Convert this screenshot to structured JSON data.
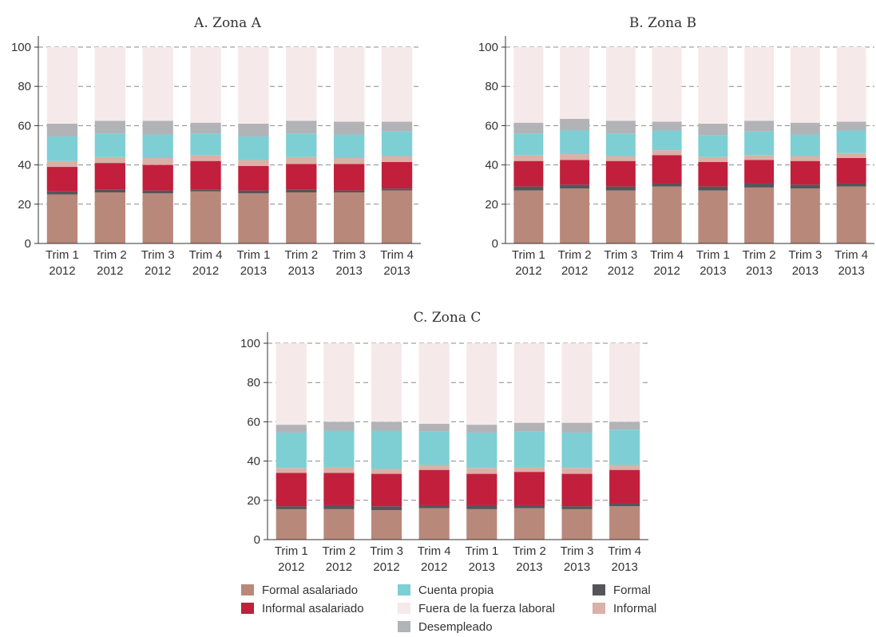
{
  "colors": {
    "formal_asalariado": "#b8887a",
    "formal": "#555559",
    "informal_asalariado": "#c21f3d",
    "informal": "#d9b1a7",
    "cuenta_propia": "#7dcfd4",
    "desempleado": "#b1b3b7",
    "fuera": "#f6e9e9",
    "grid": "#8a8a8a",
    "axis": "#333333"
  },
  "chart_data": [
    {
      "type": "bar",
      "stacked": true,
      "title": "A. Zona A",
      "categories": [
        "Trim 1\n2012",
        "Trim 2\n2012",
        "Trim 3\n2012",
        "Trim 4\n2012",
        "Trim 1\n2013",
        "Trim 2\n2013",
        "Trim 3\n2013",
        "Trim 4\n2013"
      ],
      "ylim": [
        0,
        100
      ],
      "yticks": [
        0,
        20,
        40,
        60,
        80,
        100
      ],
      "grid": true,
      "series": [
        {
          "name": "Formal asalariado",
          "key": "formal_asalariado",
          "values": [
            25,
            26,
            25.5,
            26.5,
            25.5,
            26,
            26,
            27
          ]
        },
        {
          "name": "Formal",
          "key": "formal",
          "values": [
            1.5,
            1.5,
            1.5,
            1,
            1.5,
            1.5,
            1,
            1
          ]
        },
        {
          "name": "Informal asalariado",
          "key": "informal_asalariado",
          "values": [
            12.5,
            13.5,
            13,
            14.5,
            12.5,
            13,
            13.5,
            13.5
          ]
        },
        {
          "name": "Informal",
          "key": "informal",
          "values": [
            3,
            3,
            3.5,
            3,
            3,
            3.5,
            3,
            3
          ]
        },
        {
          "name": "Cuenta propia",
          "key": "cuenta_propia",
          "values": [
            12.5,
            12,
            12,
            11,
            12,
            12,
            12,
            12.5
          ]
        },
        {
          "name": "Desempleado",
          "key": "desempleado",
          "values": [
            6.5,
            6.5,
            7,
            5.5,
            6.5,
            6.5,
            6.5,
            5
          ]
        },
        {
          "name": "Fuera de la fuerza laboral",
          "key": "fuera",
          "values": [
            39,
            37.5,
            37.5,
            38.5,
            39,
            37.5,
            38,
            38
          ]
        }
      ]
    },
    {
      "type": "bar",
      "stacked": true,
      "title": "B. Zona B",
      "categories": [
        "Trim 1\n2012",
        "Trim 2\n2012",
        "Trim 3\n2012",
        "Trim 4\n2012",
        "Trim 1\n2013",
        "Trim 2\n2013",
        "Trim 3\n2013",
        "Trim 4\n2013"
      ],
      "ylim": [
        0,
        100
      ],
      "yticks": [
        0,
        20,
        40,
        60,
        80,
        100
      ],
      "grid": true,
      "series": [
        {
          "name": "Formal asalariado",
          "key": "formal_asalariado",
          "values": [
            27,
            28,
            27,
            29,
            27,
            28.5,
            28,
            29
          ]
        },
        {
          "name": "Formal",
          "key": "formal",
          "values": [
            2,
            2,
            2,
            1.5,
            2,
            2,
            2,
            1.5
          ]
        },
        {
          "name": "Informal asalariado",
          "key": "informal_asalariado",
          "values": [
            13,
            12.5,
            13,
            14.5,
            12.5,
            12,
            12,
            13
          ]
        },
        {
          "name": "Informal",
          "key": "informal",
          "values": [
            3,
            3,
            2.5,
            2.5,
            2.5,
            2.5,
            2.5,
            2.5
          ]
        },
        {
          "name": "Cuenta propia",
          "key": "cuenta_propia",
          "values": [
            11,
            12,
            11.5,
            10,
            11,
            12,
            11,
            11.5
          ]
        },
        {
          "name": "Desempleado",
          "key": "desempleado",
          "values": [
            5.5,
            6,
            6.5,
            4.5,
            6,
            5.5,
            6,
            4.5
          ]
        },
        {
          "name": "Fuera de la fuerza laboral",
          "key": "fuera",
          "values": [
            38.5,
            36.5,
            37.5,
            38,
            39,
            37.5,
            38.5,
            38
          ]
        }
      ]
    },
    {
      "type": "bar",
      "stacked": true,
      "title": "C. Zona C",
      "categories": [
        "Trim 1\n2012",
        "Trim 2\n2012",
        "Trim 3\n2012",
        "Trim 4\n2012",
        "Trim 1\n2013",
        "Trim 2\n2013",
        "Trim 3\n2013",
        "Trim 4\n2013"
      ],
      "ylim": [
        0,
        100
      ],
      "yticks": [
        0,
        20,
        40,
        60,
        80,
        100
      ],
      "grid": true,
      "series": [
        {
          "name": "Formal asalariado",
          "key": "formal_asalariado",
          "values": [
            15.5,
            15.5,
            15,
            16,
            15.5,
            16,
            15.5,
            17
          ]
        },
        {
          "name": "Formal",
          "key": "formal",
          "values": [
            1.5,
            2,
            2,
            1.5,
            2,
            1.5,
            1.5,
            1.5
          ]
        },
        {
          "name": "Informal asalariado",
          "key": "informal_asalariado",
          "values": [
            17,
            16.5,
            16.5,
            18,
            16,
            17,
            16.5,
            17
          ]
        },
        {
          "name": "Informal",
          "key": "informal",
          "values": [
            2.5,
            3,
            2.5,
            2.5,
            3,
            2.5,
            3,
            2.5
          ]
        },
        {
          "name": "Cuenta propia",
          "key": "cuenta_propia",
          "values": [
            18,
            18.5,
            19.5,
            17,
            18,
            18,
            18,
            18
          ]
        },
        {
          "name": "Desempleado",
          "key": "desempleado",
          "values": [
            4,
            4.5,
            4.5,
            4,
            4,
            4.5,
            5,
            4
          ]
        },
        {
          "name": "Fuera de la fuerza laboral",
          "key": "fuera",
          "values": [
            41.5,
            40,
            40,
            41,
            41.5,
            40.5,
            40.5,
            40
          ]
        }
      ]
    }
  ],
  "legend": {
    "items": [
      {
        "label": "Formal asalariado",
        "key": "formal_asalariado"
      },
      {
        "label": "Cuenta propia",
        "key": "cuenta_propia"
      },
      {
        "label": "Formal",
        "key": "formal"
      },
      {
        "label": "Informal asalariado",
        "key": "informal_asalariado"
      },
      {
        "label": "Fuera de la fuerza laboral",
        "key": "fuera"
      },
      {
        "label": "Informal",
        "key": "informal"
      },
      {
        "label": "Desempleado",
        "key": "desempleado"
      }
    ]
  }
}
